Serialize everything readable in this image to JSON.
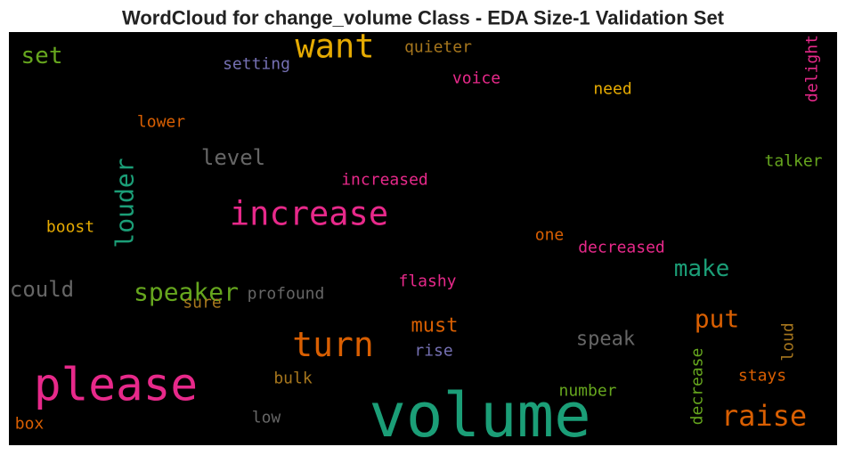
{
  "chart_data": {
    "type": "wordcloud",
    "title": "WordCloud for change_volume Class - EDA Size-1 Validation Set",
    "background": "#000000",
    "words": [
      {
        "text": "want",
        "color": "#e6ab02"
      },
      {
        "text": "set",
        "color": "#66a61e"
      },
      {
        "text": "quieter",
        "color": "#a6761d"
      },
      {
        "text": "setting",
        "color": "#7570b3"
      },
      {
        "text": "delight",
        "color": "#e7298a"
      },
      {
        "text": "voice",
        "color": "#e7298a"
      },
      {
        "text": "need",
        "color": "#e6ab02"
      },
      {
        "text": "lower",
        "color": "#d95f02"
      },
      {
        "text": "level",
        "color": "#666666"
      },
      {
        "text": "louder",
        "color": "#1b9e77"
      },
      {
        "text": "talker",
        "color": "#66a61e"
      },
      {
        "text": "increased",
        "color": "#e7298a"
      },
      {
        "text": "increase",
        "color": "#e7298a"
      },
      {
        "text": "boost",
        "color": "#e6ab02"
      },
      {
        "text": "one",
        "color": "#d95f02"
      },
      {
        "text": "decreased",
        "color": "#e7298a"
      },
      {
        "text": "make",
        "color": "#1b9e77"
      },
      {
        "text": "could",
        "color": "#666666"
      },
      {
        "text": "speaker",
        "color": "#66a61e"
      },
      {
        "text": "profound",
        "color": "#666666"
      },
      {
        "text": "flashy",
        "color": "#e7298a"
      },
      {
        "text": "sure",
        "color": "#a6761d"
      },
      {
        "text": "put",
        "color": "#d95f02"
      },
      {
        "text": "must",
        "color": "#d95f02"
      },
      {
        "text": "turn",
        "color": "#d95f02"
      },
      {
        "text": "speak",
        "color": "#666666"
      },
      {
        "text": "loud",
        "color": "#a6761d"
      },
      {
        "text": "rise",
        "color": "#7570b3"
      },
      {
        "text": "please",
        "color": "#e7298a"
      },
      {
        "text": "bulk",
        "color": "#a6761d"
      },
      {
        "text": "stays",
        "color": "#d95f02"
      },
      {
        "text": "decrease",
        "color": "#66a61e"
      },
      {
        "text": "number",
        "color": "#66a61e"
      },
      {
        "text": "volume",
        "color": "#1b9e77"
      },
      {
        "text": "raise",
        "color": "#d95f02"
      },
      {
        "text": "low",
        "color": "#666666"
      },
      {
        "text": "box",
        "color": "#d95f02"
      }
    ]
  }
}
